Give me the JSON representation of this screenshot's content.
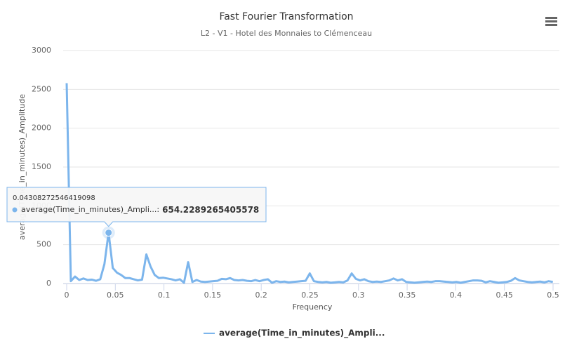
{
  "chart_data": {
    "type": "line",
    "title": "Fast Fourier Transformation",
    "subtitle": "L2 - V1 - Hotel des Monnaies to Clémenceau",
    "x_label": "Frequency",
    "y_label": "average(Time_in_minutes)_Amplitude",
    "x": [
      0,
      0.0043,
      0.0086,
      0.0129,
      0.0172,
      0.0215,
      0.0258,
      0.0302,
      0.0345,
      0.0388,
      0.04308272546419098,
      0.0474,
      0.0517,
      0.056,
      0.0603,
      0.0646,
      0.0689,
      0.0732,
      0.0775,
      0.0819,
      0.0862,
      0.0905,
      0.0948,
      0.0991,
      0.1034,
      0.1077,
      0.112,
      0.1163,
      0.1206,
      0.1249,
      0.1292,
      0.1336,
      0.1379,
      0.1422,
      0.1465,
      0.1508,
      0.1551,
      0.1594,
      0.1637,
      0.168,
      0.1723,
      0.1766,
      0.1809,
      0.1853,
      0.1896,
      0.1939,
      0.1982,
      0.2025,
      0.2068,
      0.2111,
      0.2154,
      0.2197,
      0.224,
      0.2283,
      0.2326,
      0.237,
      0.2413,
      0.2456,
      0.2499,
      0.2542,
      0.2585,
      0.2628,
      0.2671,
      0.2714,
      0.2757,
      0.28,
      0.2843,
      0.2887,
      0.293,
      0.2973,
      0.3016,
      0.3059,
      0.3102,
      0.3145,
      0.3188,
      0.3231,
      0.3274,
      0.3317,
      0.336,
      0.3404,
      0.3447,
      0.349,
      0.3533,
      0.3576,
      0.3619,
      0.3662,
      0.3705,
      0.3748,
      0.3791,
      0.3834,
      0.3877,
      0.3921,
      0.3964,
      0.4007,
      0.405,
      0.4093,
      0.4136,
      0.4179,
      0.4222,
      0.4265,
      0.4308,
      0.4351,
      0.4394,
      0.4438,
      0.4481,
      0.4524,
      0.4567,
      0.461,
      0.4653,
      0.4696,
      0.4739,
      0.4782,
      0.4825,
      0.4868,
      0.4912,
      0.4955,
      0.4998
    ],
    "series": [
      {
        "name": "average(Time_in_minutes)_Ampli...",
        "color": "#7cb5ec",
        "values": [
          2580,
          30,
          90,
          45,
          65,
          45,
          50,
          35,
          55,
          250,
          654.2289265405578,
          200,
          140,
          110,
          70,
          70,
          55,
          40,
          50,
          375,
          220,
          110,
          70,
          75,
          65,
          55,
          40,
          55,
          10,
          275,
          20,
          45,
          25,
          20,
          25,
          30,
          35,
          60,
          55,
          70,
          45,
          40,
          45,
          35,
          30,
          45,
          30,
          45,
          55,
          10,
          30,
          20,
          25,
          15,
          20,
          25,
          30,
          35,
          130,
          30,
          20,
          15,
          20,
          10,
          15,
          20,
          15,
          40,
          130,
          60,
          40,
          55,
          30,
          20,
          25,
          20,
          30,
          40,
          65,
          40,
          55,
          20,
          15,
          10,
          15,
          20,
          25,
          20,
          30,
          30,
          25,
          20,
          15,
          20,
          10,
          20,
          30,
          40,
          40,
          35,
          15,
          30,
          20,
          10,
          15,
          20,
          35,
          70,
          40,
          30,
          20,
          15,
          20,
          25,
          15,
          30,
          20
        ]
      }
    ],
    "xlim": [
      0,
      0.5
    ],
    "xticks": [
      0,
      0.05,
      0.1,
      0.15,
      0.2,
      0.25,
      0.3,
      0.35,
      0.4,
      0.45,
      0.5
    ],
    "ylim": [
      0,
      3000
    ],
    "yticks": [
      0,
      500,
      1000,
      1500,
      2000,
      2500,
      3000
    ],
    "grid": true,
    "legend": "bottom",
    "tooltip": {
      "index": 10,
      "series_label": "average(Time_in_minutes)_Ampli...:"
    }
  }
}
